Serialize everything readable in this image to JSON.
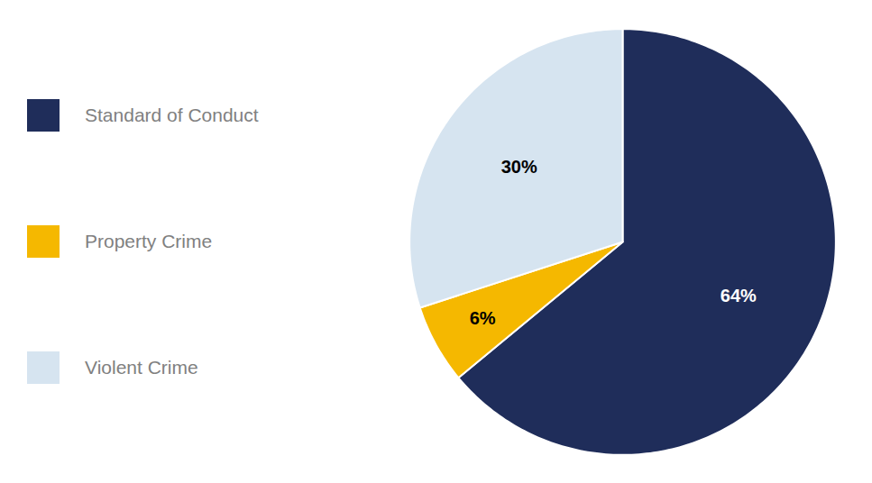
{
  "chart_data": {
    "type": "pie",
    "categories": [
      "Standard of Conduct",
      "Property Crime",
      "Violent Crime"
    ],
    "values": [
      64,
      6,
      30
    ],
    "value_labels": [
      "64%",
      "6%",
      "30%"
    ],
    "colors": [
      "#1f2d5a",
      "#f5b800",
      "#d6e4f0"
    ],
    "data_labels": true,
    "legend": "left"
  }
}
